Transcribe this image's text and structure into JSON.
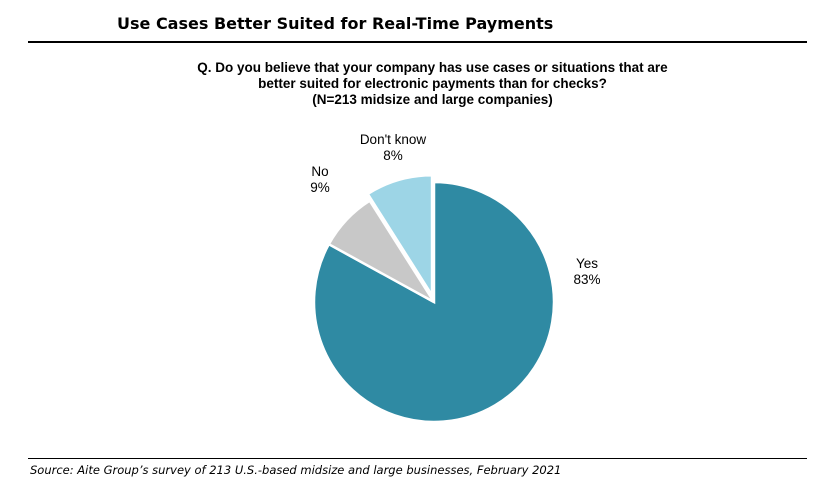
{
  "header": {
    "title": "Use Cases Better Suited for Real-Time Payments"
  },
  "question": {
    "line1": "Q. Do you believe that your company has use cases or situations that are",
    "line2": "better suited for electronic payments than for checks?",
    "line3": "(N=213 midsize and large companies)"
  },
  "footer": {
    "source": "Source: Aite Group’s survey of 213 U.S.-based midsize and large businesses, February 2021"
  },
  "chart_data": {
    "type": "pie",
    "slices": [
      {
        "label": "Yes",
        "value": 83,
        "value_label": "83%",
        "color": "#2f8aa3",
        "exploded": false
      },
      {
        "label": "Don't know",
        "value": 8,
        "value_label": "8%",
        "color": "#c8c8c8",
        "exploded": false
      },
      {
        "label": "No",
        "value": 9,
        "value_label": "9%",
        "color": "#9dd5e6",
        "exploded": true
      }
    ],
    "start": "12 o'clock",
    "direction": "clockwise",
    "labels": "outside",
    "legend": "none"
  }
}
